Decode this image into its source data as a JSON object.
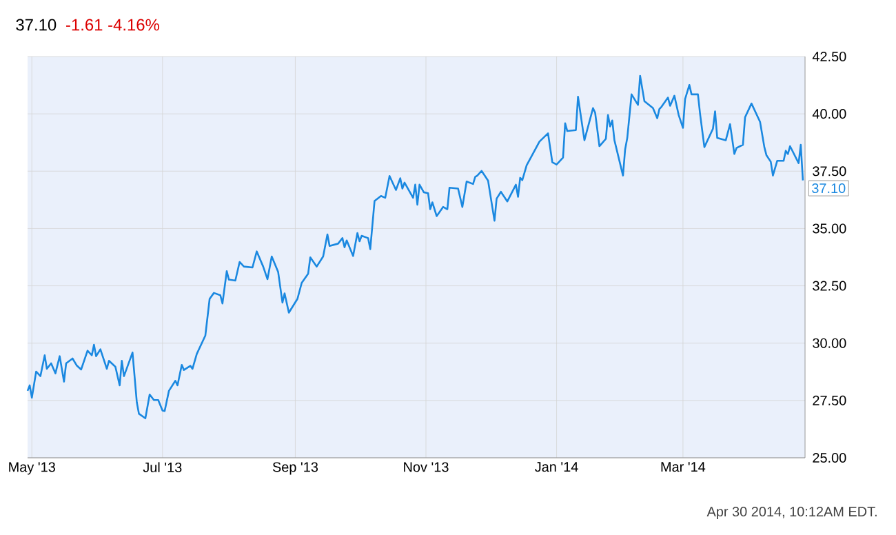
{
  "chart_data": {
    "type": "line",
    "title": "37.10",
    "subtitle": "-1.61  -4.16%",
    "x": [
      "2013-04-29",
      "2013-04-30",
      "2013-05-01",
      "2013-05-03",
      "2013-05-05",
      "2013-05-07",
      "2013-05-08",
      "2013-05-10",
      "2013-05-12",
      "2013-05-14",
      "2013-05-16",
      "2013-05-17",
      "2013-05-20",
      "2013-05-22",
      "2013-05-24",
      "2013-05-27",
      "2013-05-29",
      "2013-05-30",
      "2013-05-31",
      "2013-06-02",
      "2013-06-05",
      "2013-06-06",
      "2013-06-09",
      "2013-06-11",
      "2013-06-12",
      "2013-06-13",
      "2013-06-17",
      "2013-06-19",
      "2013-06-20",
      "2013-06-23",
      "2013-06-25",
      "2013-06-27",
      "2013-06-29",
      "2013-07-01",
      "2013-07-02",
      "2013-07-04",
      "2013-07-07",
      "2013-07-08",
      "2013-07-10",
      "2013-07-11",
      "2013-07-14",
      "2013-07-15",
      "2013-07-17",
      "2013-07-21",
      "2013-07-23",
      "2013-07-25",
      "2013-07-28",
      "2013-07-29",
      "2013-07-31",
      "2013-08-01",
      "2013-08-04",
      "2013-08-06",
      "2013-08-08",
      "2013-08-12",
      "2013-08-14",
      "2013-08-17",
      "2013-08-19",
      "2013-08-21",
      "2013-08-24",
      "2013-08-26",
      "2013-08-27",
      "2013-08-29",
      "2013-09-02",
      "2013-09-04",
      "2013-09-07",
      "2013-09-08",
      "2013-09-11",
      "2013-09-14",
      "2013-09-16",
      "2013-09-17",
      "2013-09-21",
      "2013-09-23",
      "2013-09-24",
      "2013-09-25",
      "2013-09-28",
      "2013-09-30",
      "2013-10-01",
      "2013-10-02",
      "2013-10-05",
      "2013-10-06",
      "2013-10-08",
      "2013-10-11",
      "2013-10-13",
      "2013-10-15",
      "2013-10-18",
      "2013-10-20",
      "2013-10-21",
      "2013-10-22",
      "2013-10-26",
      "2013-10-27",
      "2013-10-28",
      "2013-10-29",
      "2013-10-31",
      "2013-11-02",
      "2013-11-03",
      "2013-11-04",
      "2013-11-06",
      "2013-11-09",
      "2013-11-11",
      "2013-11-12",
      "2013-11-16",
      "2013-11-18",
      "2013-11-20",
      "2013-11-23",
      "2013-11-24",
      "2013-11-25",
      "2013-11-27",
      "2013-11-30",
      "2013-12-03",
      "2013-12-04",
      "2013-12-06",
      "2013-12-09",
      "2013-12-13",
      "2013-12-14",
      "2013-12-15",
      "2013-12-16",
      "2013-12-18",
      "2013-12-24",
      "2013-12-28",
      "2013-12-30",
      "2014-01-01",
      "2014-01-04",
      "2014-01-05",
      "2014-01-06",
      "2014-01-10",
      "2014-01-11",
      "2014-01-14",
      "2014-01-16",
      "2014-01-18",
      "2014-01-19",
      "2014-01-21",
      "2014-01-24",
      "2014-01-25",
      "2014-01-26",
      "2014-01-27",
      "2014-01-28",
      "2014-02-01",
      "2014-02-02",
      "2014-02-03",
      "2014-02-05",
      "2014-02-08",
      "2014-02-09",
      "2014-02-11",
      "2014-02-15",
      "2014-02-17",
      "2014-02-18",
      "2014-02-19",
      "2014-02-22",
      "2014-02-23",
      "2014-02-25",
      "2014-02-27",
      "2014-03-01",
      "2014-03-02",
      "2014-03-04",
      "2014-03-05",
      "2014-03-08",
      "2014-03-09",
      "2014-03-11",
      "2014-03-15",
      "2014-03-16",
      "2014-03-17",
      "2014-03-21",
      "2014-03-23",
      "2014-03-25",
      "2014-03-26",
      "2014-03-29",
      "2014-03-30",
      "2014-04-02",
      "2014-04-06",
      "2014-04-08",
      "2014-04-09",
      "2014-04-11",
      "2014-04-12",
      "2014-04-14",
      "2014-04-17",
      "2014-04-18",
      "2014-04-19",
      "2014-04-20",
      "2014-04-24",
      "2014-04-25",
      "2014-04-26"
    ],
    "series": [
      {
        "color": "#1a88e0",
        "values": [
          27.92,
          28.16,
          27.62,
          28.76,
          28.56,
          29.47,
          28.88,
          29.12,
          28.68,
          29.43,
          28.32,
          29.12,
          29.33,
          29.02,
          28.85,
          29.67,
          29.47,
          29.93,
          29.43,
          29.73,
          28.88,
          29.23,
          28.97,
          28.16,
          29.23,
          28.56,
          29.59,
          27.42,
          26.92,
          26.72,
          27.76,
          27.52,
          27.52,
          27.06,
          27.04,
          27.92,
          28.36,
          28.16,
          29.05,
          28.83,
          29.01,
          28.88,
          29.53,
          30.33,
          31.93,
          32.19,
          32.09,
          31.73,
          33.14,
          32.77,
          32.73,
          33.54,
          33.34,
          33.3,
          34.0,
          33.34,
          32.79,
          33.78,
          33.1,
          31.77,
          32.17,
          31.33,
          31.93,
          32.63,
          33.03,
          33.74,
          33.34,
          33.78,
          34.74,
          34.24,
          34.34,
          34.58,
          34.18,
          34.48,
          33.8,
          34.8,
          34.44,
          34.68,
          34.58,
          34.1,
          36.2,
          36.42,
          36.34,
          37.29,
          36.68,
          37.19,
          36.74,
          37.0,
          36.34,
          36.91,
          36.04,
          36.91,
          36.58,
          36.54,
          35.84,
          36.14,
          35.54,
          35.94,
          35.84,
          36.78,
          36.74,
          35.94,
          37.05,
          36.94,
          37.25,
          37.31,
          37.51,
          37.09,
          35.34,
          36.3,
          36.6,
          36.18,
          36.91,
          36.38,
          37.21,
          37.11,
          37.75,
          38.79,
          39.15,
          37.89,
          37.79,
          38.09,
          39.59,
          39.25,
          39.29,
          40.75,
          38.85,
          39.55,
          40.25,
          40.05,
          38.59,
          38.91,
          39.95,
          39.45,
          39.71,
          38.85,
          37.31,
          38.45,
          38.95,
          40.85,
          40.39,
          41.66,
          40.55,
          40.25,
          39.81,
          40.21,
          40.31,
          40.71,
          40.35,
          40.79,
          39.95,
          39.39,
          40.65,
          41.26,
          40.85,
          40.85,
          39.99,
          38.55,
          39.35,
          40.11,
          38.95,
          38.85,
          39.55,
          38.25,
          38.51,
          38.65,
          39.85,
          40.45,
          39.65,
          38.55,
          38.19,
          37.91,
          37.31,
          37.95,
          37.95,
          38.39,
          38.25,
          38.59,
          37.85,
          38.65,
          37.1
        ]
      }
    ],
    "xlim": [
      "2013-04-29",
      "2014-04-27"
    ],
    "xticks": [
      {
        "value": "2013-05-01",
        "label": "May '13"
      },
      {
        "value": "2013-07-01",
        "label": "Jul '13"
      },
      {
        "value": "2013-09-01",
        "label": "Sep '13"
      },
      {
        "value": "2013-11-01",
        "label": "Nov '13"
      },
      {
        "value": "2014-01-01",
        "label": "Jan '14"
      },
      {
        "value": "2014-03-01",
        "label": "Mar '14"
      }
    ],
    "ylim": [
      25,
      42.5
    ],
    "yticks": [
      {
        "value": 25,
        "label": "25.00"
      },
      {
        "value": 27.5,
        "label": "27.50"
      },
      {
        "value": 30,
        "label": "30.00"
      },
      {
        "value": 32.5,
        "label": "32.50"
      },
      {
        "value": 35,
        "label": "35.00"
      },
      {
        "value": 37.5,
        "label": "37.50"
      },
      {
        "value": 40,
        "label": "40.00"
      },
      {
        "value": 42.5,
        "label": "42.50"
      }
    ],
    "grid": true,
    "marker": "none",
    "line_style": "solid",
    "annotations": [
      {
        "text": "37.10",
        "x": "2014-04-26",
        "y": 37.1
      },
      "Apr 30 2014, 10:12AM EDT."
    ]
  }
}
